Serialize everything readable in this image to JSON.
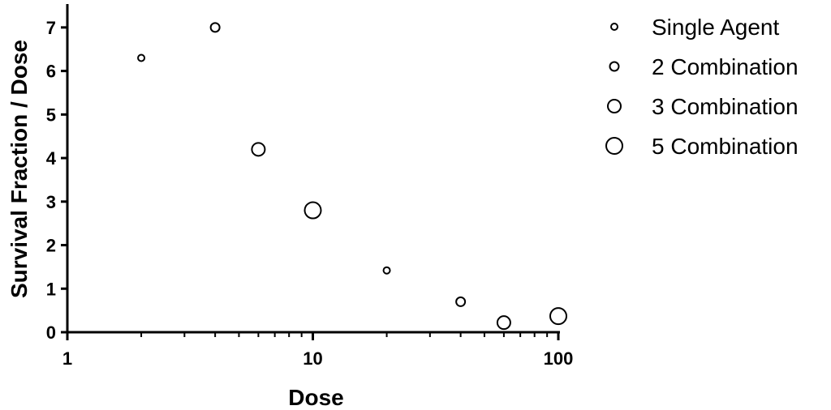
{
  "chart_data": {
    "type": "scatter",
    "title": "",
    "xlabel": "Dose",
    "ylabel": "Survival Fraction / Dose",
    "xscale": "log",
    "xlim": [
      1,
      100
    ],
    "ylim": [
      0,
      7.5
    ],
    "xticks": [
      {
        "value": 1,
        "label": "1"
      },
      {
        "value": 10,
        "label": "10"
      },
      {
        "value": 100,
        "label": "100"
      }
    ],
    "yticks": [
      {
        "value": 0,
        "label": "0"
      },
      {
        "value": 1,
        "label": "1"
      },
      {
        "value": 2,
        "label": "2"
      },
      {
        "value": 3,
        "label": "3"
      },
      {
        "value": 4,
        "label": "4"
      },
      {
        "value": 5,
        "label": "5"
      },
      {
        "value": 6,
        "label": "6"
      },
      {
        "value": 7,
        "label": "7"
      }
    ],
    "grid": false,
    "legend_position": "top-right",
    "marker": "open-circle",
    "series": [
      {
        "name": "Single Agent",
        "marker_size": 1,
        "points": [
          {
            "x": 2,
            "y": 6.3
          },
          {
            "x": 20,
            "y": 1.42
          }
        ]
      },
      {
        "name": "2 Combination",
        "marker_size": 2,
        "points": [
          {
            "x": 4,
            "y": 7.0
          },
          {
            "x": 40,
            "y": 0.7
          }
        ]
      },
      {
        "name": "3 Combination",
        "marker_size": 3,
        "points": [
          {
            "x": 6,
            "y": 4.2
          },
          {
            "x": 60,
            "y": 0.22
          }
        ]
      },
      {
        "name": "5 Combination",
        "marker_size": 5,
        "points": [
          {
            "x": 10,
            "y": 2.8
          },
          {
            "x": 100,
            "y": 0.37
          }
        ]
      }
    ]
  }
}
